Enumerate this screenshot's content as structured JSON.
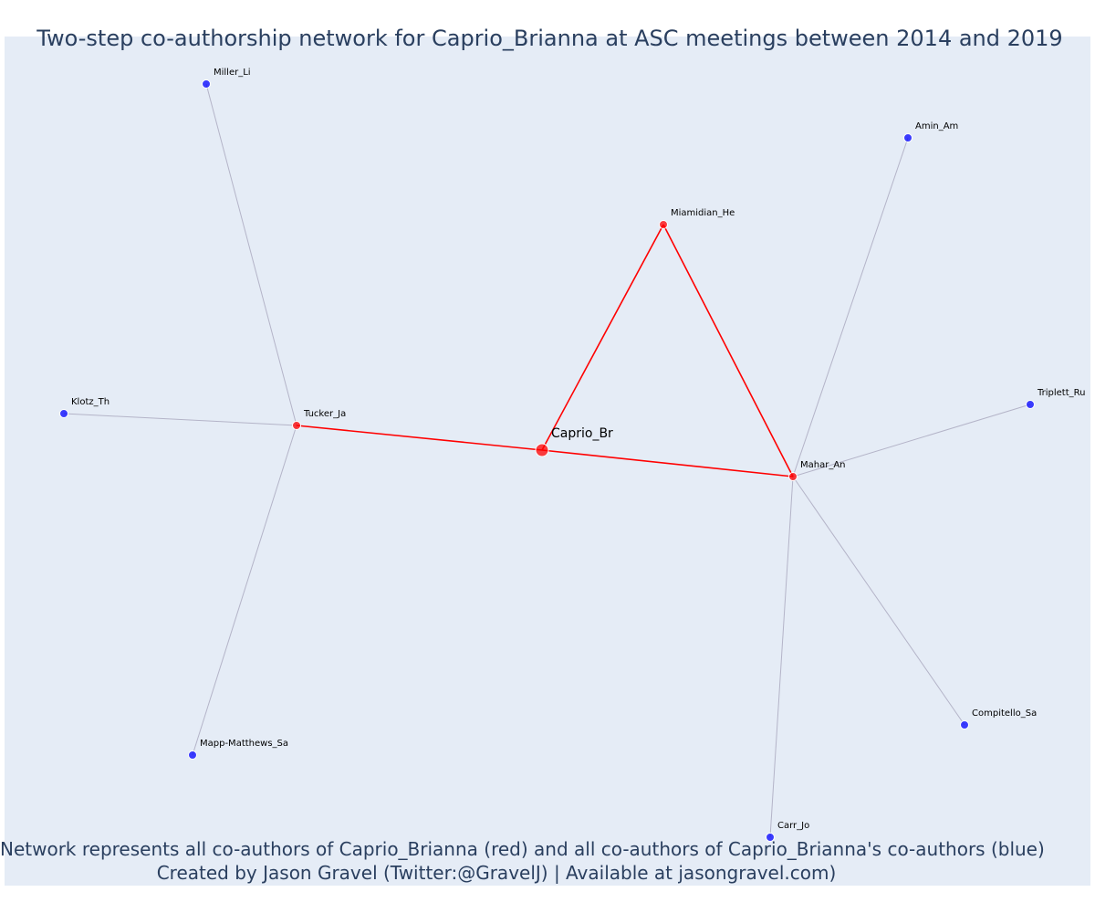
{
  "title": "Two-step co-authorship network for Caprio_Brianna at ASC meetings between 2014 and 2019",
  "footnote": {
    "line1": "Network represents all co-authors of Caprio_Brianna (red) and all co-authors of Caprio_Brianna's co-authors (blue)",
    "line2": "Created by Jason Gravel (Twitter:@GravelJ) | Available at jasongravel.com)"
  },
  "colors": {
    "background": "#e5ecf6",
    "first_degree": "#ff0000",
    "second_degree": "#0000ff",
    "edge_first": "#ff0000",
    "edge_second": "#b4b4c8",
    "text": "#2a3f5f"
  },
  "nodes": [
    {
      "id": "Caprio_Br",
      "group": "focal"
    },
    {
      "id": "Miamidian_He",
      "group": "first_degree"
    },
    {
      "id": "Tucker_Ja",
      "group": "first_degree"
    },
    {
      "id": "Mahar_An",
      "group": "first_degree"
    },
    {
      "id": "Miller_Li",
      "group": "second_degree"
    },
    {
      "id": "Klotz_Th",
      "group": "second_degree"
    },
    {
      "id": "Mapp-Matthews_Sa",
      "group": "second_degree"
    },
    {
      "id": "Amin_Am",
      "group": "second_degree"
    },
    {
      "id": "Triplett_Ru",
      "group": "second_degree"
    },
    {
      "id": "Compitello_Sa",
      "group": "second_degree"
    },
    {
      "id": "Carr_Jo",
      "group": "second_degree"
    }
  ],
  "edges": [
    {
      "source": "Caprio_Br",
      "target": "Miamidian_He",
      "type": "first_degree"
    },
    {
      "source": "Caprio_Br",
      "target": "Tucker_Ja",
      "type": "first_degree"
    },
    {
      "source": "Caprio_Br",
      "target": "Mahar_An",
      "type": "first_degree"
    },
    {
      "source": "Miamidian_He",
      "target": "Mahar_An",
      "type": "first_degree"
    },
    {
      "source": "Tucker_Ja",
      "target": "Miller_Li",
      "type": "second_degree"
    },
    {
      "source": "Tucker_Ja",
      "target": "Klotz_Th",
      "type": "second_degree"
    },
    {
      "source": "Tucker_Ja",
      "target": "Mapp-Matthews_Sa",
      "type": "second_degree"
    },
    {
      "source": "Mahar_An",
      "target": "Amin_Am",
      "type": "second_degree"
    },
    {
      "source": "Mahar_An",
      "target": "Triplett_Ru",
      "type": "second_degree"
    },
    {
      "source": "Mahar_An",
      "target": "Compitello_Sa",
      "type": "second_degree"
    },
    {
      "source": "Mahar_An",
      "target": "Carr_Jo",
      "type": "second_degree"
    }
  ]
}
